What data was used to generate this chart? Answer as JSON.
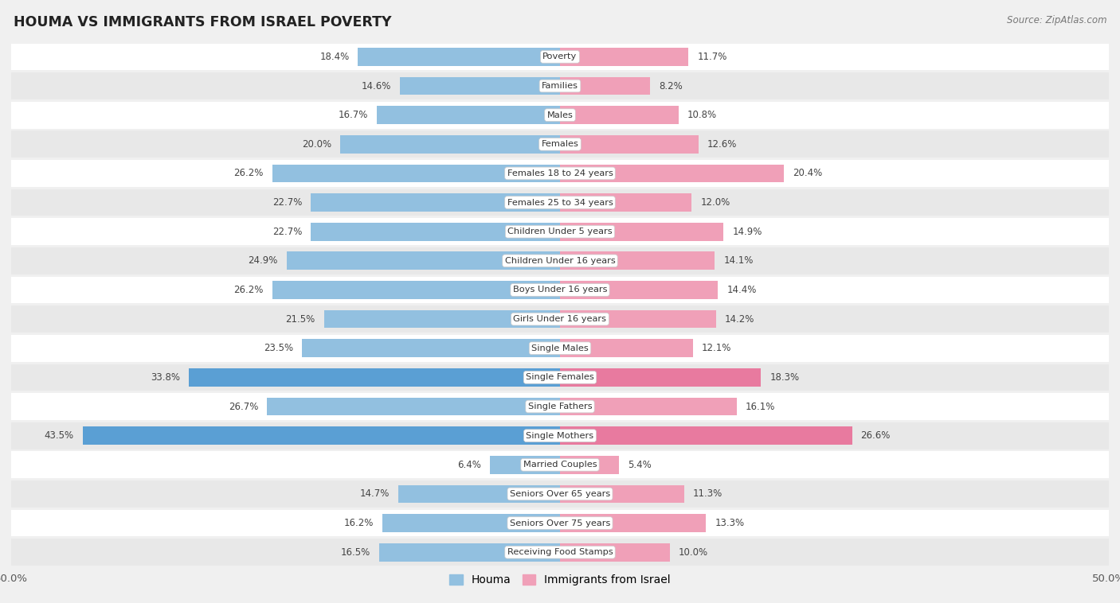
{
  "title": "HOUMA VS IMMIGRANTS FROM ISRAEL POVERTY",
  "source": "Source: ZipAtlas.com",
  "categories": [
    "Poverty",
    "Families",
    "Males",
    "Females",
    "Females 18 to 24 years",
    "Females 25 to 34 years",
    "Children Under 5 years",
    "Children Under 16 years",
    "Boys Under 16 years",
    "Girls Under 16 years",
    "Single Males",
    "Single Females",
    "Single Fathers",
    "Single Mothers",
    "Married Couples",
    "Seniors Over 65 years",
    "Seniors Over 75 years",
    "Receiving Food Stamps"
  ],
  "houma_values": [
    18.4,
    14.6,
    16.7,
    20.0,
    26.2,
    22.7,
    22.7,
    24.9,
    26.2,
    21.5,
    23.5,
    33.8,
    26.7,
    43.5,
    6.4,
    14.7,
    16.2,
    16.5
  ],
  "israel_values": [
    11.7,
    8.2,
    10.8,
    12.6,
    20.4,
    12.0,
    14.9,
    14.1,
    14.4,
    14.2,
    12.1,
    18.3,
    16.1,
    26.6,
    5.4,
    11.3,
    13.3,
    10.0
  ],
  "houma_color": "#92c0e0",
  "israel_color": "#f0a0b8",
  "houma_highlight_color": "#5a9fd4",
  "israel_highlight_color": "#e87a9f",
  "highlight_rows": [
    11,
    13
  ],
  "axis_max": 50.0,
  "legend_houma": "Houma",
  "legend_israel": "Immigrants from Israel",
  "background_color": "#f0f0f0",
  "row_bg_light": "#ffffff",
  "row_bg_dark": "#e8e8e8"
}
